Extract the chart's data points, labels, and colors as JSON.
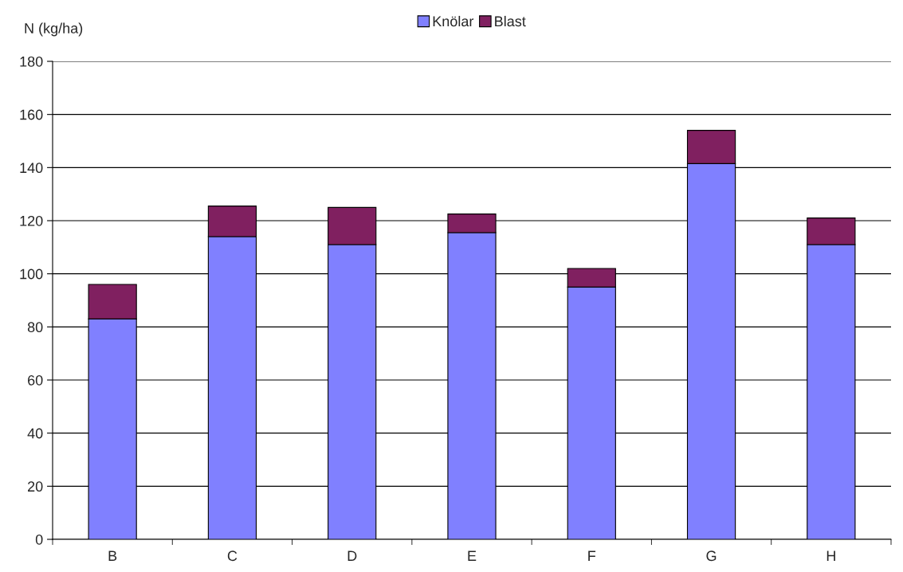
{
  "chart_data": {
    "type": "bar",
    "stacked": true,
    "ylabel": "N (kg/ha)",
    "categories": [
      "B",
      "C",
      "D",
      "E",
      "F",
      "G",
      "H"
    ],
    "series": [
      {
        "name": "Knölar",
        "color": "#8080ff",
        "values": [
          83,
          114,
          111,
          115.5,
          95,
          141.5,
          111
        ]
      },
      {
        "name": "Blast",
        "color": "#802060",
        "values": [
          13,
          11.5,
          14,
          7,
          7,
          12.5,
          10
        ]
      }
    ],
    "ylim": [
      0,
      180
    ],
    "yticks": [
      0,
      20,
      40,
      60,
      80,
      100,
      120,
      140,
      160,
      180
    ],
    "grid": "y",
    "legend": "top"
  }
}
